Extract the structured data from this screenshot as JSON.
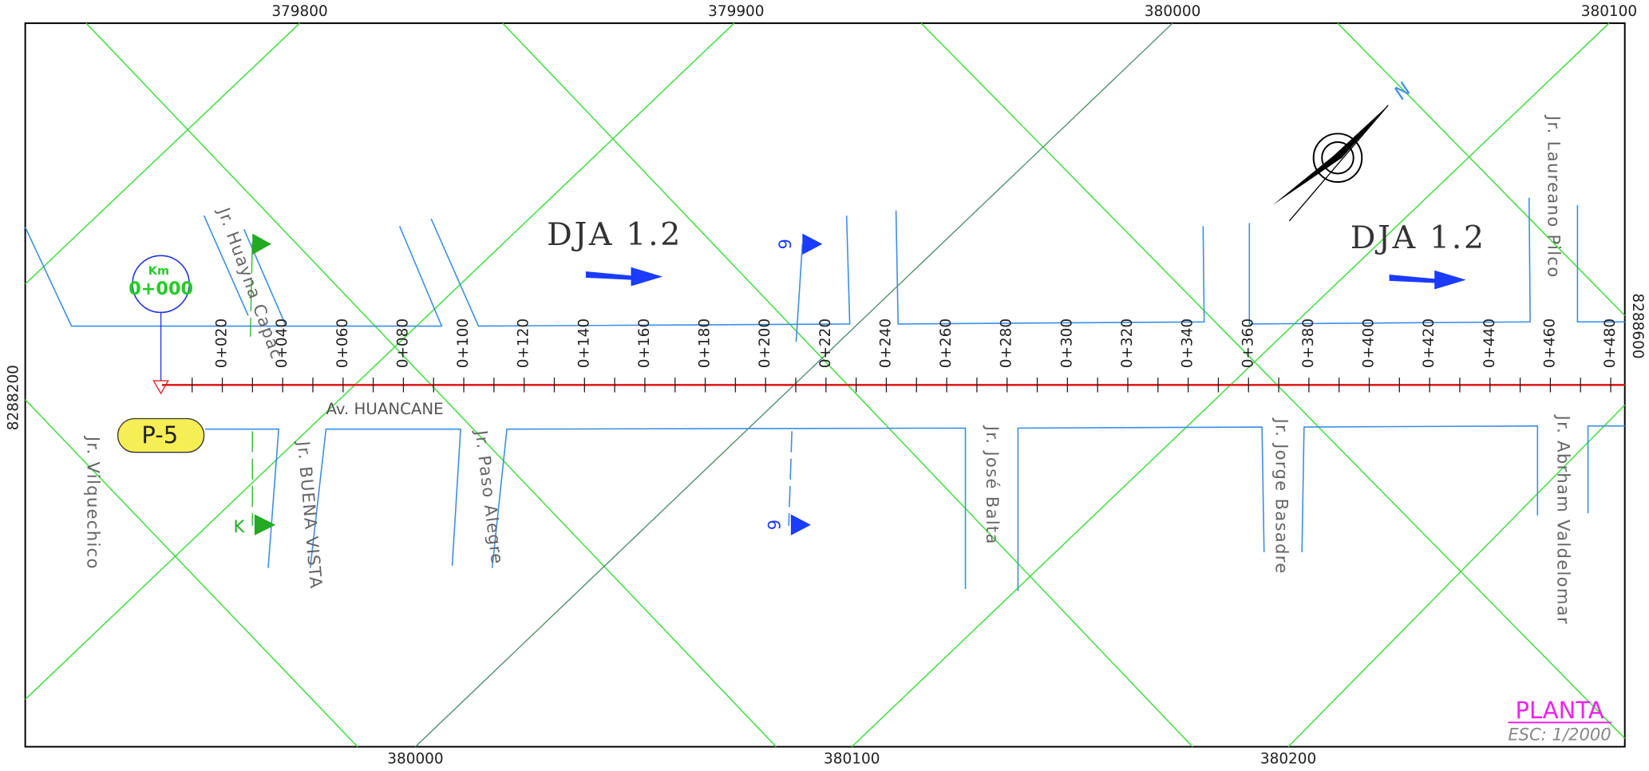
{
  "grid_labels": {
    "top": [
      "379800",
      "379900",
      "380000",
      "380100"
    ],
    "bottom": [
      "380000",
      "380100",
      "380200"
    ],
    "left": "8288200",
    "right": "8288600"
  },
  "stations": [
    "0+020",
    "0+040",
    "0+060",
    "0+080",
    "0+100",
    "0+120",
    "0+140",
    "0+160",
    "0+180",
    "0+200",
    "0+220",
    "0+240",
    "0+260",
    "0+280",
    "0+300",
    "0+320",
    "0+340",
    "0+360",
    "0+380",
    "0+400",
    "0+420",
    "0+440",
    "0+460",
    "0+480"
  ],
  "start": {
    "km": "Km",
    "station": "0+000"
  },
  "marker": "P-5",
  "avenue": "Av. HUANCANE",
  "streets": [
    "Jr. Vilquechico",
    "Jr. Huayna Capac",
    "Jr. BUENA VISTA",
    "Jr. Paso Alegre",
    "Jr. José Balta",
    "Jr. Jorge Basadre",
    "Jr. Abrham Valdelomar",
    "Jr. Laureano Pilco"
  ],
  "flow_labels": [
    "DJA 1.2",
    "DJA 1.2"
  ],
  "north": "N",
  "sections": [
    "9",
    "9"
  ],
  "k_label": "K",
  "title": "PLANTA",
  "scale": "ESC: 1/2000"
}
